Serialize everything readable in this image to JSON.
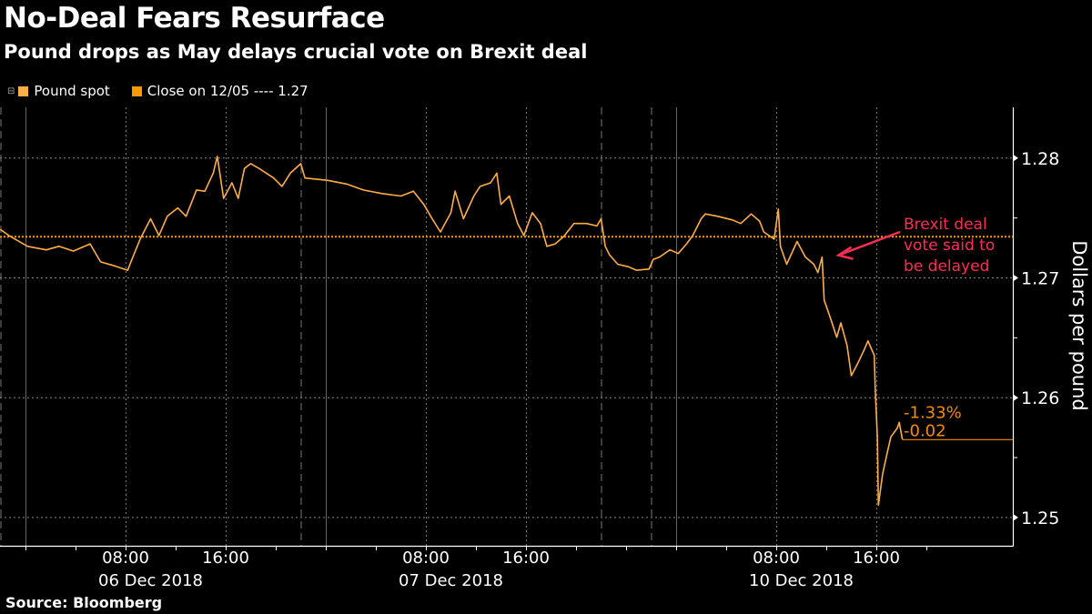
{
  "header": {
    "title": "No-Deal Fears Resurface",
    "subtitle": "Pound drops as May delays crucial vote on Brexit deal"
  },
  "legend": [
    {
      "label": "Pound spot",
      "color": "#ffad47"
    },
    {
      "label": "Close on 12/05 ---- 1.27",
      "color": "#f59a00"
    }
  ],
  "footer": {
    "source": "Source: Bloomberg"
  },
  "chart_data": {
    "type": "line",
    "title": "No-Deal Fears Resurface",
    "subtitle": "Pound drops as May delays crucial vote on Brexit deal",
    "ylabel": "Dollars per pound",
    "ylim": [
      1.2476,
      1.2842
    ],
    "yticks": [
      "1.25",
      "1.26",
      "1.27",
      "1.28"
    ],
    "xlim": [
      "2018-12-05 22:00",
      "2018-12-11 02:55"
    ],
    "x_time_labels": [
      {
        "time": "2018-12-06 08:00",
        "label": "08:00"
      },
      {
        "time": "2018-12-06 16:00",
        "label": "16:00"
      },
      {
        "time": "2018-12-07 08:00",
        "label": "08:00"
      },
      {
        "time": "2018-12-07 16:00",
        "label": "16:00"
      },
      {
        "time": "2018-12-10 08:00",
        "label": "08:00"
      },
      {
        "time": "2018-12-10 16:00",
        "label": "16:00"
      }
    ],
    "x_date_labels": [
      {
        "time": "2018-12-06 10:00",
        "label": "06 Dec 2018"
      },
      {
        "time": "2018-12-07 10:00",
        "label": "07 Dec 2018"
      },
      {
        "time": "2018-12-10 10:00",
        "label": "10 Dec 2018"
      }
    ],
    "grid": true,
    "legend_position": "top-left",
    "reference_line": {
      "name": "Close on 12/05",
      "value": 1.2734,
      "color": "#f59a00",
      "style": "dotted"
    },
    "last_value": 1.2565,
    "change_labels": {
      "percent": "-1.33%",
      "absolute": "-0.02",
      "color": "#f28c00"
    },
    "annotation": {
      "text": [
        "Brexit deal",
        "vote said to",
        "be delayed"
      ],
      "color": "#ff2d55",
      "points_to": {
        "time": "2018-12-10 11:40",
        "value": 1.2717
      }
    },
    "series": [
      {
        "name": "Pound spot",
        "color": "#ffad47",
        "points": [
          [
            "2018-12-05 22:00",
            1.274
          ],
          [
            "2018-12-05 22:40",
            1.2735
          ],
          [
            "2018-12-06 00:10",
            1.2726
          ],
          [
            "2018-12-06 01:40",
            1.2723
          ],
          [
            "2018-12-06 02:40",
            1.2726
          ],
          [
            "2018-12-06 03:50",
            1.2722
          ],
          [
            "2018-12-06 05:10",
            1.2728
          ],
          [
            "2018-12-06 06:00",
            1.2713
          ],
          [
            "2018-12-06 07:00",
            1.271
          ],
          [
            "2018-12-06 08:10",
            1.2706
          ],
          [
            "2018-12-06 08:30",
            1.2715
          ],
          [
            "2018-12-06 09:10",
            1.2732
          ],
          [
            "2018-12-06 10:00",
            1.2749
          ],
          [
            "2018-12-06 10:40",
            1.2735
          ],
          [
            "2018-12-06 11:20",
            1.2751
          ],
          [
            "2018-12-06 12:10",
            1.2758
          ],
          [
            "2018-12-06 12:50",
            1.2751
          ],
          [
            "2018-12-06 13:40",
            1.2773
          ],
          [
            "2018-12-06 14:20",
            1.2772
          ],
          [
            "2018-12-06 15:00",
            1.2787
          ],
          [
            "2018-12-06 15:20",
            1.2801
          ],
          [
            "2018-12-06 15:50",
            1.2766
          ],
          [
            "2018-12-06 16:30",
            1.2779
          ],
          [
            "2018-12-06 17:00",
            1.2766
          ],
          [
            "2018-12-06 17:30",
            1.2791
          ],
          [
            "2018-12-06 18:00",
            1.2795
          ],
          [
            "2018-12-06 18:40",
            1.2791
          ],
          [
            "2018-12-06 19:50",
            1.2783
          ],
          [
            "2018-12-06 20:30",
            1.2776
          ],
          [
            "2018-12-06 21:10",
            1.2787
          ],
          [
            "2018-12-06 22:00",
            1.2795
          ],
          [
            "2018-12-06 22:20",
            1.2783
          ],
          [
            "2018-12-07 00:10",
            1.2781
          ],
          [
            "2018-12-07 01:40",
            1.2778
          ],
          [
            "2018-12-07 03:00",
            1.2773
          ],
          [
            "2018-12-07 04:30",
            1.277
          ],
          [
            "2018-12-07 06:00",
            1.2768
          ],
          [
            "2018-12-07 07:00",
            1.2772
          ],
          [
            "2018-12-07 07:50",
            1.2761
          ],
          [
            "2018-12-07 08:30",
            1.2749
          ],
          [
            "2018-12-07 09:10",
            1.2738
          ],
          [
            "2018-12-07 10:00",
            1.2754
          ],
          [
            "2018-12-07 10:20",
            1.2772
          ],
          [
            "2018-12-07 11:00",
            1.2749
          ],
          [
            "2018-12-07 11:50",
            1.2768
          ],
          [
            "2018-12-07 12:20",
            1.2776
          ],
          [
            "2018-12-07 13:10",
            1.2779
          ],
          [
            "2018-12-07 13:40",
            1.2787
          ],
          [
            "2018-12-07 14:00",
            1.2761
          ],
          [
            "2018-12-07 14:40",
            1.2768
          ],
          [
            "2018-12-07 15:20",
            1.2745
          ],
          [
            "2018-12-07 15:50",
            1.2735
          ],
          [
            "2018-12-07 16:30",
            1.2754
          ],
          [
            "2018-12-07 17:10",
            1.2745
          ],
          [
            "2018-12-07 17:40",
            1.2726
          ],
          [
            "2018-12-07 18:20",
            1.2728
          ],
          [
            "2018-12-07 19:00",
            1.2734
          ],
          [
            "2018-12-07 19:50",
            1.2745
          ],
          [
            "2018-12-07 20:50",
            1.2745
          ],
          [
            "2018-12-07 21:40",
            1.2743
          ],
          [
            "2018-12-07 22:00",
            1.2749
          ],
          [
            "2018-12-09 18:20",
            1.2726
          ],
          [
            "2018-12-09 18:40",
            1.2719
          ],
          [
            "2018-12-09 19:20",
            1.2711
          ],
          [
            "2018-12-09 20:10",
            1.2709
          ],
          [
            "2018-12-09 20:50",
            1.2706
          ],
          [
            "2018-12-09 21:50",
            1.2707
          ],
          [
            "2018-12-09 22:10",
            1.2715
          ],
          [
            "2018-12-09 22:40",
            1.2717
          ],
          [
            "2018-12-09 23:30",
            1.2723
          ],
          [
            "2018-12-10 00:10",
            1.272
          ],
          [
            "2018-12-10 00:50",
            1.2728
          ],
          [
            "2018-12-10 01:20",
            1.2735
          ],
          [
            "2018-12-10 02:00",
            1.2749
          ],
          [
            "2018-12-10 02:20",
            1.2753
          ],
          [
            "2018-12-10 03:20",
            1.2751
          ],
          [
            "2018-12-10 04:30",
            1.2748
          ],
          [
            "2018-12-10 05:10",
            1.2745
          ],
          [
            "2018-12-10 06:00",
            1.2753
          ],
          [
            "2018-12-10 06:40",
            1.2747
          ],
          [
            "2018-12-10 07:00",
            1.2738
          ],
          [
            "2018-12-10 07:50",
            1.2732
          ],
          [
            "2018-12-10 08:10",
            1.2757
          ],
          [
            "2018-12-10 08:20",
            1.2726
          ],
          [
            "2018-12-10 08:50",
            1.2711
          ],
          [
            "2018-12-10 09:40",
            1.273
          ],
          [
            "2018-12-10 10:20",
            1.2717
          ],
          [
            "2018-12-10 11:00",
            1.2711
          ],
          [
            "2018-12-10 11:20",
            1.2704
          ],
          [
            "2018-12-10 11:40",
            1.2717
          ],
          [
            "2018-12-10 11:50",
            1.2681
          ],
          [
            "2018-12-10 12:20",
            1.2666
          ],
          [
            "2018-12-10 12:50",
            1.265
          ],
          [
            "2018-12-10 13:10",
            1.2662
          ],
          [
            "2018-12-10 13:40",
            1.2643
          ],
          [
            "2018-12-10 14:00",
            1.2618
          ],
          [
            "2018-12-10 14:30",
            1.2628
          ],
          [
            "2018-12-10 15:00",
            1.2639
          ],
          [
            "2018-12-10 15:20",
            1.2647
          ],
          [
            "2018-12-10 15:50",
            1.2635
          ],
          [
            "2018-12-10 15:55",
            1.2605
          ],
          [
            "2018-12-10 16:05",
            1.2567
          ],
          [
            "2018-12-10 16:10",
            1.251
          ],
          [
            "2018-12-10 16:30",
            1.2536
          ],
          [
            "2018-12-10 16:50",
            1.2552
          ],
          [
            "2018-12-10 17:10",
            1.2567
          ],
          [
            "2018-12-10 17:40",
            1.2574
          ],
          [
            "2018-12-10 17:50",
            1.2579
          ],
          [
            "2018-12-10 18:05",
            1.2565
          ]
        ]
      }
    ]
  }
}
